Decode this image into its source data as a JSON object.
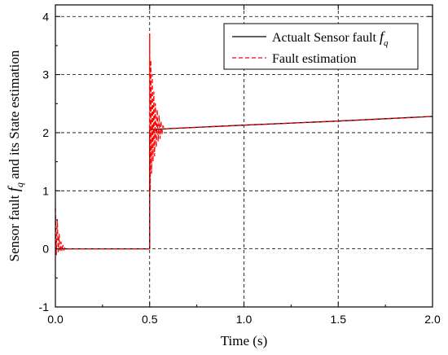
{
  "chart_data": {
    "type": "line",
    "xlabel": "Time (s)",
    "ylabel": {
      "prefix": "Sensor fault ",
      "sym": "f",
      "sub": "q",
      "suffix": " and its State estimation"
    },
    "xlim": [
      0,
      2.0
    ],
    "ylim": [
      -1,
      4.2
    ],
    "xticks": [
      0.0,
      0.5,
      1.0,
      1.5,
      2.0
    ],
    "xtick_labels": [
      "0.0",
      "0.5",
      "1.0",
      "1.5",
      "2.0"
    ],
    "yticks": [
      -1,
      0,
      1,
      2,
      3,
      4
    ],
    "ytick_labels": [
      "-1",
      "0",
      "1",
      "2",
      "3",
      "4"
    ],
    "grid": true,
    "legend_position": "top-right",
    "series": [
      {
        "name": "Actualt Sensor fault ",
        "name_sym": "f",
        "name_sub": "q",
        "color": "#000000",
        "style": "solid",
        "x": [
          0,
          0.5,
          0.5,
          0.6,
          1.0,
          1.5,
          2.0
        ],
        "y": [
          0,
          0,
          2.05,
          2.07,
          2.13,
          2.2,
          2.28
        ]
      },
      {
        "name": "Fault estimation",
        "color": "#ff0000",
        "style": "dashed",
        "x": [
          0,
          0.005,
          0.01,
          0.015,
          0.02,
          0.025,
          0.03,
          0.035,
          0.04,
          0.045,
          0.05,
          0.06,
          0.5,
          0.5,
          0.503,
          0.506,
          0.51,
          0.514,
          0.518,
          0.522,
          0.526,
          0.53,
          0.535,
          0.54,
          0.545,
          0.55,
          0.555,
          0.56,
          0.565,
          0.57,
          0.58,
          0.6,
          1.0,
          1.5,
          2.0
        ],
        "y": [
          0.7,
          -0.1,
          0.5,
          -0.05,
          0.25,
          -0.05,
          0.12,
          -0.03,
          0.06,
          -0.02,
          0.02,
          0,
          0,
          3.7,
          1.0,
          3.25,
          1.3,
          3.0,
          1.5,
          2.7,
          1.6,
          2.5,
          1.75,
          2.4,
          1.85,
          2.3,
          1.9,
          2.2,
          1.97,
          2.12,
          2.06,
          2.07,
          2.13,
          2.2,
          2.28
        ]
      }
    ]
  }
}
